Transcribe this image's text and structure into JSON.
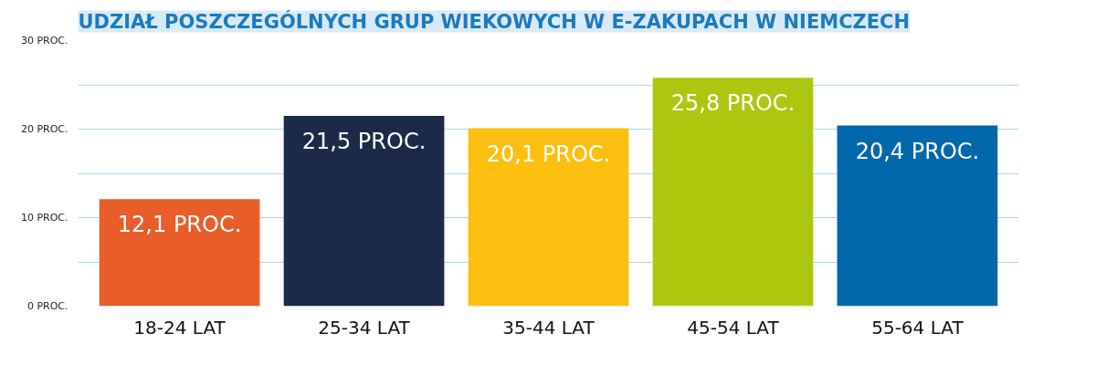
{
  "chart_data": {
    "type": "bar",
    "title": "UDZIAŁ POSZCZEGÓLNYCH GRUP WIEKOWYCH W E-ZAKUPACH W NIEMCZECH",
    "categories": [
      "18-24 LAT",
      "25-34 LAT",
      "35-44 LAT",
      "45-54 LAT",
      "55-64 LAT"
    ],
    "values": [
      12.1,
      21.5,
      20.1,
      25.8,
      20.4
    ],
    "value_labels": [
      "12,1 PROC.",
      "21,5 PROC.",
      "20,1 PROC.",
      "25,8 PROC.",
      "20,4 PROC."
    ],
    "colors": [
      "#e85d2a",
      "#1a2a48",
      "#fbbf10",
      "#adc70f",
      "#0068aa"
    ],
    "ylim": [
      0,
      30
    ],
    "yticks": [
      {
        "value": 0,
        "label": "0 PROC."
      },
      {
        "value": 5,
        "label": null
      },
      {
        "value": 10,
        "label": "10 PROC."
      },
      {
        "value": 15,
        "label": null
      },
      {
        "value": 20,
        "label": "20 PROC."
      },
      {
        "value": 25,
        "label": null
      },
      {
        "value": 30,
        "label": "30 PROC."
      }
    ],
    "grid": "y"
  }
}
